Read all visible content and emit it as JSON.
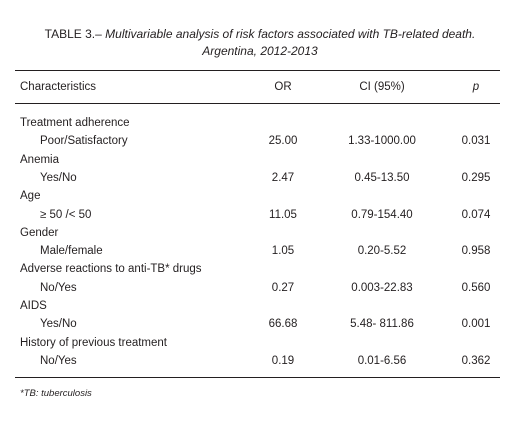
{
  "caption": {
    "label": "TABLE 3.–",
    "text": "Multivariable analysis of risk factors associated with TB-related death. Argentina, 2012-2013"
  },
  "table": {
    "headers": [
      "Characteristics",
      "OR",
      "CI (95%)",
      "p"
    ],
    "groups": [
      {
        "label": "Treatment adherence",
        "rows": [
          [
            "Poor/Satisfactory",
            "25.00",
            "1.33-1000.00",
            "0.031"
          ]
        ]
      },
      {
        "label": "Anemia",
        "rows": [
          [
            "Yes/No",
            "2.47",
            "0.45-13.50",
            "0.295"
          ]
        ]
      },
      {
        "label": "Age",
        "rows": [
          [
            "≥ 50 /< 50",
            "11.05",
            "0.79-154.40",
            "0.074"
          ]
        ]
      },
      {
        "label": "Gender",
        "rows": [
          [
            "Male/female",
            "1.05",
            "0.20-5.52",
            "0.958"
          ]
        ]
      },
      {
        "label": "Adverse reactions to anti-TB* drugs",
        "rows": [
          [
            "No/Yes",
            "0.27",
            "0.003-22.83",
            "0.560"
          ]
        ]
      },
      {
        "label": "AIDS",
        "rows": [
          [
            "Yes/No",
            "66.68",
            "5.48- 811.86",
            "0.001"
          ]
        ]
      },
      {
        "label": "History of previous treatment",
        "rows": [
          [
            "No/Yes",
            "0.19",
            "0.01-6.56",
            "0.362"
          ]
        ]
      }
    ]
  },
  "footnote": "*TB: tuberculosis"
}
